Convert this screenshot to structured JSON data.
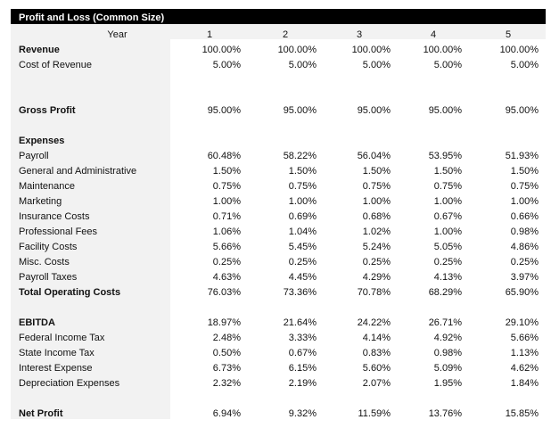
{
  "title": "Profit and Loss (Common Size)",
  "year_label": "Year",
  "years": [
    "1",
    "2",
    "3",
    "4",
    "5"
  ],
  "rows": [
    {
      "label": "Revenue",
      "bold": true,
      "values": [
        "100.00%",
        "100.00%",
        "100.00%",
        "100.00%",
        "100.00%"
      ]
    },
    {
      "label": "Cost of Revenue",
      "bold": false,
      "values": [
        "5.00%",
        "5.00%",
        "5.00%",
        "5.00%",
        "5.00%"
      ]
    },
    {
      "label": "",
      "bold": false,
      "values": [
        "",
        "",
        "",
        "",
        ""
      ]
    },
    {
      "label": "",
      "bold": false,
      "values": [
        "",
        "",
        "",
        "",
        ""
      ]
    },
    {
      "label": "Gross Profit",
      "bold": true,
      "values": [
        "95.00%",
        "95.00%",
        "95.00%",
        "95.00%",
        "95.00%"
      ]
    },
    {
      "label": "",
      "bold": false,
      "values": [
        "",
        "",
        "",
        "",
        ""
      ]
    },
    {
      "label": "Expenses",
      "bold": true,
      "values": [
        "",
        "",
        "",
        "",
        ""
      ]
    },
    {
      "label": "Payroll",
      "bold": false,
      "values": [
        "60.48%",
        "58.22%",
        "56.04%",
        "53.95%",
        "51.93%"
      ]
    },
    {
      "label": "General and Administrative",
      "bold": false,
      "values": [
        "1.50%",
        "1.50%",
        "1.50%",
        "1.50%",
        "1.50%"
      ]
    },
    {
      "label": "Maintenance",
      "bold": false,
      "values": [
        "0.75%",
        "0.75%",
        "0.75%",
        "0.75%",
        "0.75%"
      ]
    },
    {
      "label": "Marketing",
      "bold": false,
      "values": [
        "1.00%",
        "1.00%",
        "1.00%",
        "1.00%",
        "1.00%"
      ]
    },
    {
      "label": "Insurance Costs",
      "bold": false,
      "values": [
        "0.71%",
        "0.69%",
        "0.68%",
        "0.67%",
        "0.66%"
      ]
    },
    {
      "label": "Professional Fees",
      "bold": false,
      "values": [
        "1.06%",
        "1.04%",
        "1.02%",
        "1.00%",
        "0.98%"
      ]
    },
    {
      "label": "Facility Costs",
      "bold": false,
      "values": [
        "5.66%",
        "5.45%",
        "5.24%",
        "5.05%",
        "4.86%"
      ]
    },
    {
      "label": "Misc. Costs",
      "bold": false,
      "values": [
        "0.25%",
        "0.25%",
        "0.25%",
        "0.25%",
        "0.25%"
      ]
    },
    {
      "label": "Payroll Taxes",
      "bold": false,
      "values": [
        "4.63%",
        "4.45%",
        "4.29%",
        "4.13%",
        "3.97%"
      ]
    },
    {
      "label": "Total Operating Costs",
      "bold": true,
      "values": [
        "76.03%",
        "73.36%",
        "70.78%",
        "68.29%",
        "65.90%"
      ]
    },
    {
      "label": "",
      "bold": false,
      "values": [
        "",
        "",
        "",
        "",
        ""
      ]
    },
    {
      "label": "EBITDA",
      "bold": true,
      "values": [
        "18.97%",
        "21.64%",
        "24.22%",
        "26.71%",
        "29.10%"
      ]
    },
    {
      "label": "Federal Income Tax",
      "bold": false,
      "values": [
        "2.48%",
        "3.33%",
        "4.14%",
        "4.92%",
        "5.66%"
      ]
    },
    {
      "label": "State Income Tax",
      "bold": false,
      "values": [
        "0.50%",
        "0.67%",
        "0.83%",
        "0.98%",
        "1.13%"
      ]
    },
    {
      "label": "Interest Expense",
      "bold": false,
      "values": [
        "6.73%",
        "6.15%",
        "5.60%",
        "5.09%",
        "4.62%"
      ]
    },
    {
      "label": "Depreciation Expenses",
      "bold": false,
      "values": [
        "2.32%",
        "2.19%",
        "2.07%",
        "1.95%",
        "1.84%"
      ]
    },
    {
      "label": "",
      "bold": false,
      "values": [
        "",
        "",
        "",
        "",
        ""
      ]
    },
    {
      "label": "Net Profit",
      "bold": true,
      "values": [
        "6.94%",
        "9.32%",
        "11.59%",
        "13.76%",
        "15.85%"
      ]
    }
  ]
}
